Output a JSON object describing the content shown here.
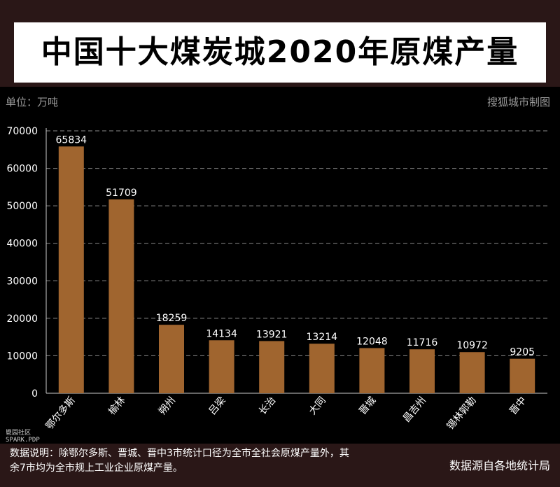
{
  "header": {
    "title": "中国十大煤炭城2020年原煤产量"
  },
  "unit_label": "单位：万吨",
  "credit": "搜狐城市制图",
  "note": "数据说明：除鄂尔多斯、晋城、晋中3市统计口径为全市全社会原煤产量外，其余7市均为全市规上工业企业原煤产量。",
  "source": "数据源自各地统计局",
  "watermark": {
    "line1": "鬯园社区",
    "line2": "SPARK.PDP"
  },
  "colors": {
    "bar": "#a0652f",
    "background": "#000000",
    "band": "#2a1717",
    "grid": "#8a8a8a"
  },
  "chart_data": {
    "type": "bar",
    "title": "中国十大煤炭城2020年原煤产量",
    "ylabel": "单位：万吨",
    "xlabel": "",
    "categories": [
      "鄂尔多斯",
      "榆林",
      "朔州",
      "吕梁",
      "长治",
      "大同",
      "晋城",
      "昌吉州",
      "锡林郭勒",
      "晋中"
    ],
    "values": [
      65834,
      51709,
      18259,
      14134,
      13921,
      13214,
      12048,
      11716,
      10972,
      9205
    ],
    "ylim": [
      0,
      70000
    ],
    "yticks": [
      0,
      10000,
      20000,
      30000,
      40000,
      50000,
      60000,
      70000
    ],
    "grid": true,
    "legend": "none"
  }
}
